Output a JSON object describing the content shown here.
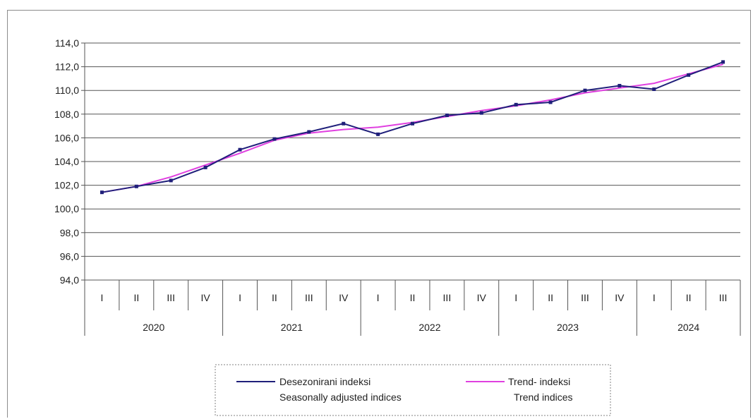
{
  "chart_data": {
    "type": "line",
    "ylim": [
      94.0,
      114.0
    ],
    "yticks": [
      "94,0",
      "96,0",
      "98,0",
      "100,0",
      "102,0",
      "104,0",
      "106,0",
      "108,0",
      "110,0",
      "112,0",
      "114,0"
    ],
    "quarters": [
      "I",
      "II",
      "III",
      "IV",
      "I",
      "II",
      "III",
      "IV",
      "I",
      "II",
      "III",
      "IV",
      "I",
      "II",
      "III",
      "IV",
      "I",
      "II",
      "III"
    ],
    "years": [
      {
        "label": "2020",
        "count": 4
      },
      {
        "label": "2021",
        "count": 4
      },
      {
        "label": "2022",
        "count": 4
      },
      {
        "label": "2023",
        "count": 4
      },
      {
        "label": "2024",
        "count": 3
      }
    ],
    "grid": true,
    "legend_position": "bottom",
    "series": [
      {
        "name": "Desezonirani indeksi",
        "name_en": "Seasonally adjusted indices",
        "color": "#1f1f7a",
        "markers": true,
        "values": [
          101.4,
          101.9,
          102.4,
          103.5,
          105.0,
          105.9,
          106.5,
          107.2,
          106.3,
          107.2,
          107.9,
          108.1,
          108.8,
          109.0,
          110.0,
          110.4,
          110.1,
          111.3,
          112.4
        ]
      },
      {
        "name": "Trend- indeksi",
        "name_en": "Trend indices",
        "color": "#e040e0",
        "markers": false,
        "values": [
          101.4,
          101.9,
          102.7,
          103.7,
          104.7,
          105.8,
          106.4,
          106.7,
          106.9,
          107.3,
          107.8,
          108.3,
          108.7,
          109.2,
          109.8,
          110.2,
          110.6,
          111.4,
          112.2
        ]
      }
    ]
  }
}
